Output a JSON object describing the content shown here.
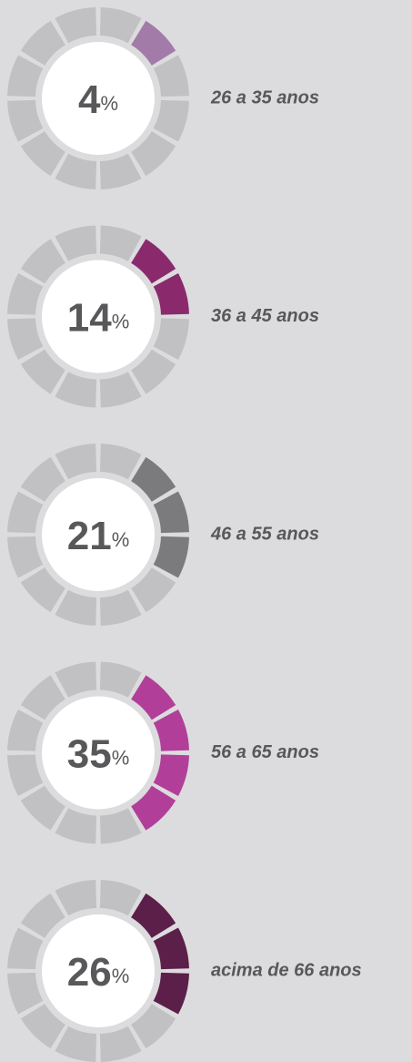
{
  "chart_data": {
    "type": "gauge",
    "categories": [
      "26 a 35 anos",
      "36 a 45 anos",
      "46 a 55 anos",
      "56 a 65 anos",
      "acima de 66 anos"
    ],
    "values": [
      4,
      14,
      21,
      35,
      26
    ],
    "unit": "%",
    "colors": [
      "#a27ba9",
      "#8a2a6d",
      "#7b7b7e",
      "#b13f99",
      "#5b1f49"
    ],
    "track_color": "#c1c1c3",
    "segments": 12
  }
}
